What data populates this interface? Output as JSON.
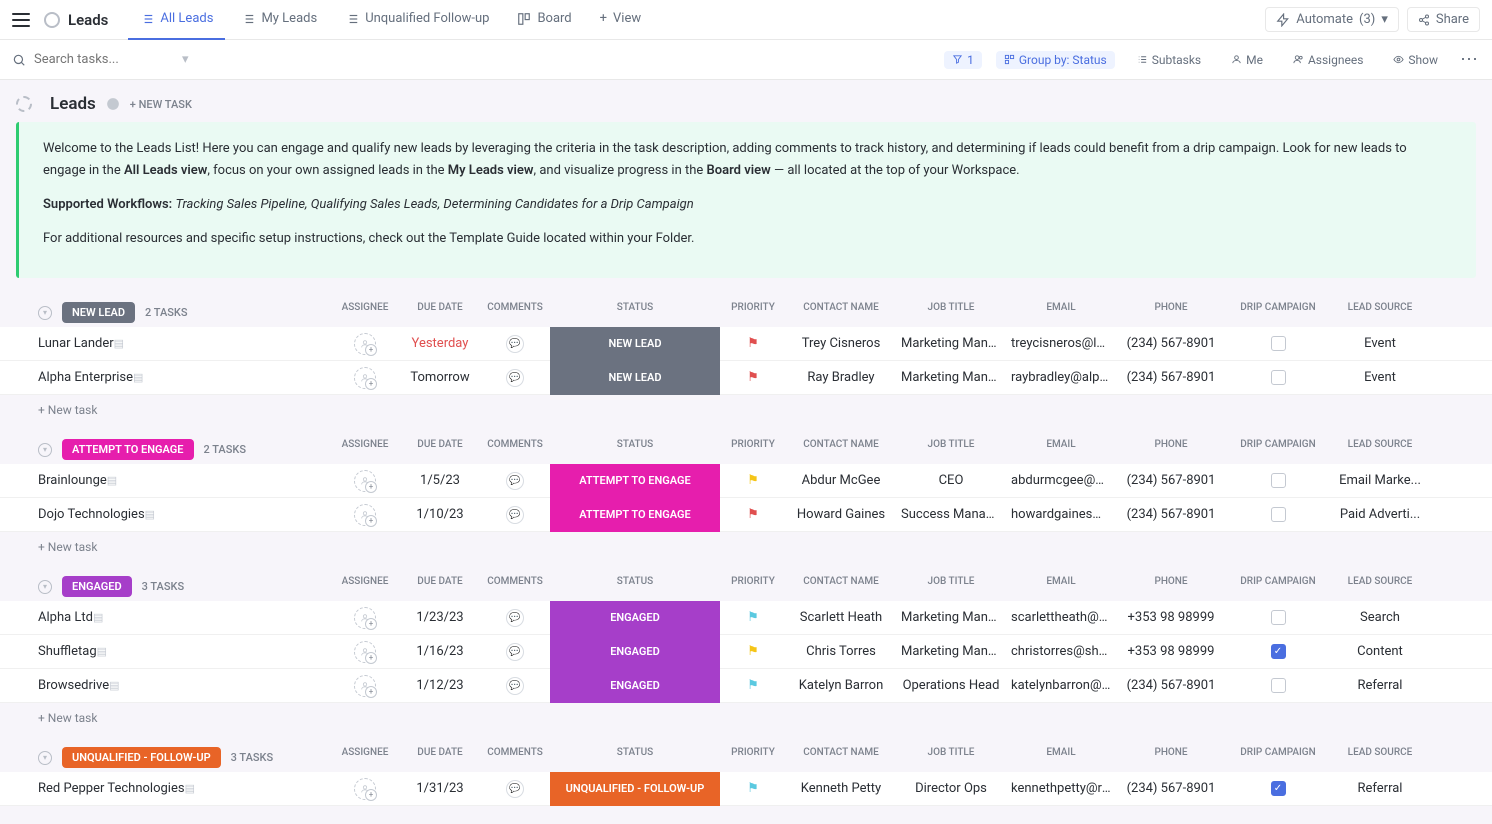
{
  "topbar": {
    "title": "Leads",
    "automate_label": "Automate",
    "automate_count": "(3)",
    "share_label": "Share",
    "tabs": [
      {
        "label": "All Leads",
        "active": true
      },
      {
        "label": "My Leads",
        "active": false
      },
      {
        "label": "Unqualified Follow-up",
        "active": false
      },
      {
        "label": "Board",
        "active": false
      },
      {
        "label": "View",
        "active": false,
        "plus": true
      }
    ]
  },
  "toolbar": {
    "search_placeholder": "Search tasks...",
    "filter_count": "1",
    "group_by": "Group by: Status",
    "subtasks": "Subtasks",
    "me": "Me",
    "assignees": "Assignees",
    "show": "Show"
  },
  "header": {
    "title": "Leads",
    "new_task": "+ NEW TASK"
  },
  "info": {
    "p1_a": "Welcome to the Leads List! Here you can engage and qualify new leads by leveraging the criteria in the task description, adding comments to track history, and determining if leads could benefit from a drip campaign. Look for new leads to engage in the ",
    "p1_b1": "All Leads view",
    "p1_c": ", focus on your own assigned leads in the ",
    "p1_b2": "My Leads view",
    "p1_d": ", and visualize progress in the ",
    "p1_b3": "Board view",
    "p1_e": " — all located at the top of your Workspace.",
    "p2_label": "Supported Workflows: ",
    "p2_items": "Tracking Sales Pipeline,  Qualifying Sales Leads, Determining Candidates for a Drip Campaign",
    "p3": "For additional resources and specific setup instructions, check out the Template Guide located within your Folder."
  },
  "columns": {
    "assignee": "ASSIGNEE",
    "due": "DUE DATE",
    "comments": "COMMENTS",
    "status": "STATUS",
    "priority": "PRIORITY",
    "contact": "CONTACT NAME",
    "job": "JOB TITLE",
    "email": "EMAIL",
    "phone": "PHONE",
    "drip": "DRIP CAMPAIGN",
    "source": "LEAD SOURCE"
  },
  "colors": {
    "new_lead": "#6b7280",
    "attempt": "#e61ead",
    "engaged": "#a63ec9",
    "unqualified": "#e86427",
    "flag_red": "#e04f4f",
    "flag_yellow": "#f5c518",
    "flag_cyan": "#5bc9e0"
  },
  "groups": [
    {
      "name": "NEW LEAD",
      "color": "#6b7280",
      "count": "2 TASKS",
      "tasks": [
        {
          "name": "Lunar Lander",
          "due": "Yesterday",
          "due_red": true,
          "status": "NEW LEAD",
          "flag": "#e04f4f",
          "contact": "Trey Cisneros",
          "job": "Marketing Manager",
          "email": "treycisneros@lunarla",
          "phone": "(234) 567-8901",
          "drip": false,
          "source": "Event"
        },
        {
          "name": "Alpha Enterprise",
          "due": "Tomorrow",
          "due_red": false,
          "status": "NEW LEAD",
          "flag": "#e04f4f",
          "contact": "Ray Bradley",
          "job": "Marketing Manager",
          "email": "raybradley@alphaent",
          "phone": "(234) 567-8901",
          "drip": false,
          "source": "Event"
        }
      ]
    },
    {
      "name": "ATTEMPT TO ENGAGE",
      "color": "#e61ead",
      "count": "2 TASKS",
      "tasks": [
        {
          "name": "Brainlounge",
          "due": "1/5/23",
          "due_red": false,
          "status": "ATTEMPT TO ENGAGE",
          "flag": "#f5c518",
          "contact": "Abdur McGee",
          "job": "CEO",
          "email": "abdurmcgee@brainlo",
          "phone": "(234) 567-8901",
          "drip": false,
          "source": "Email Marke..."
        },
        {
          "name": "Dojo Technologies",
          "due": "1/10/23",
          "due_red": false,
          "status": "ATTEMPT TO ENGAGE",
          "flag": "#e04f4f",
          "contact": "Howard Gaines",
          "job": "Success Manager",
          "email": "howardgaines@dojot",
          "phone": "(234) 567-8901",
          "drip": false,
          "source": "Paid Adverti..."
        }
      ]
    },
    {
      "name": "ENGAGED",
      "color": "#a63ec9",
      "count": "3 TASKS",
      "tasks": [
        {
          "name": "Alpha Ltd",
          "due": "1/23/23",
          "due_red": false,
          "status": "ENGAGED",
          "flag": "#5bc9e0",
          "contact": "Scarlett Heath",
          "job": "Marketing Manager",
          "email": "scarlettheath@alphal",
          "phone": "+353 98 98999",
          "drip": false,
          "source": "Search"
        },
        {
          "name": "Shuffletag",
          "due": "1/16/23",
          "due_red": false,
          "status": "ENGAGED",
          "flag": "#f5c518",
          "contact": "Chris Torres",
          "job": "Marketing Manager",
          "email": "christorres@shufflet",
          "phone": "+353 98 98999",
          "drip": true,
          "source": "Content"
        },
        {
          "name": "Browsedrive",
          "due": "1/12/23",
          "due_red": false,
          "status": "ENGAGED",
          "flag": "#5bc9e0",
          "contact": "Katelyn Barron",
          "job": "Operations Head",
          "email": "katelynbarron@brows",
          "phone": "(234) 567-8901",
          "drip": false,
          "source": "Referral"
        }
      ]
    },
    {
      "name": "UNQUALIFIED - FOLLOW-UP",
      "color": "#e86427",
      "count": "3 TASKS",
      "tasks": [
        {
          "name": "Red Pepper Technologies",
          "due": "1/31/23",
          "due_red": false,
          "status": "UNQUALIFIED - FOLLOW-UP",
          "flag": "#5bc9e0",
          "contact": "Kenneth Petty",
          "job": "Director Ops",
          "email": "kennethpetty@redpe",
          "phone": "(234) 567-8901",
          "drip": true,
          "source": "Referral"
        }
      ]
    }
  ],
  "new_task_label": "+ New task"
}
